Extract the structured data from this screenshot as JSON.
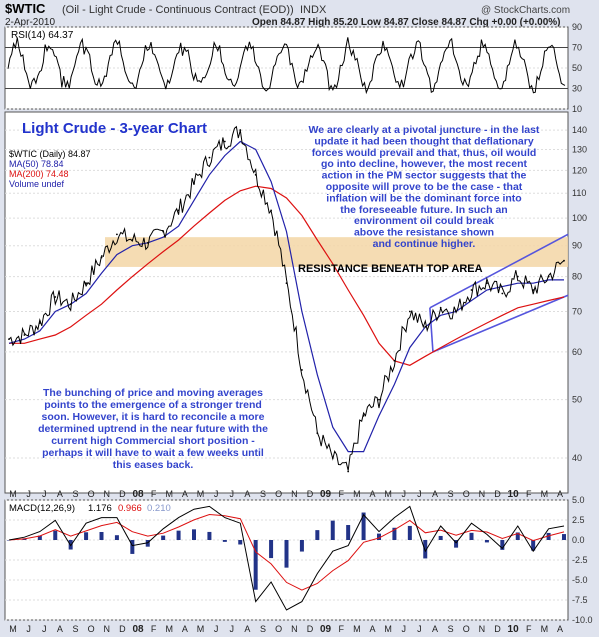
{
  "header": {
    "symbol": "$WTIC",
    "name": "(Oil - Light Crude - Continuous Contract (EOD))",
    "exchange": "INDX",
    "date": "2-Apr-2010",
    "ohlc": "Open 84.87  High 85.20  Low 84.87  Close 84.87  Chg +0.00 (+0.00%)",
    "watermark": "@ StockCharts.com"
  },
  "rsi": {
    "label": "RSI(14) 64.37",
    "ticks": [
      90,
      70,
      50,
      30,
      10
    ],
    "overbought": 70,
    "oversold": 30
  },
  "main": {
    "title": "Light Crude - 3-year Chart",
    "legend": {
      "price": "$WTIC (Daily) 84.87",
      "ma50": "MA(50) 78.84",
      "ma200": "MA(200) 74.48",
      "volume": "Volume undef"
    },
    "ticks": [
      140,
      130,
      120,
      110,
      100,
      90,
      80,
      70,
      60,
      50,
      40
    ],
    "resistance_label": "RESISTANCE BENEATH TOP AREA",
    "note_top": [
      "We are clearly at a pivotal juncture - in the last",
      "update it had been thought that deflationary",
      "forces would prevail and that, thus, oil would",
      "go into decline, however, the most recent",
      "action in the PM sector suggests that the",
      "opposite will prove to be the case - that",
      "inflation will be the dominant force into",
      "the foreseeable future. In such an",
      "environment oil could break",
      "above the resistance shown",
      "and continue higher."
    ],
    "note_bottom": [
      "The bunching of price and moving averages",
      "points to the emergence of a stronger trend",
      "soon. However, it is hard to reconcile a more",
      "determined uptrend in the near future with the",
      "current high Commercial short position -",
      "perhaps it will have to wait a few weeks until",
      "this eases back."
    ]
  },
  "macd": {
    "label": "MACD(12,26,9)",
    "v1": "1.176",
    "v2": "0.966",
    "v3": "0.210",
    "ticks": [
      "5.0",
      "2.5",
      "0.0",
      "-2.5",
      "-5.0",
      "-7.5",
      "-10.0"
    ]
  },
  "x_axis": [
    "M",
    "J",
    "J",
    "A",
    "S",
    "O",
    "N",
    "D",
    "08",
    "F",
    "M",
    "A",
    "M",
    "J",
    "J",
    "A",
    "S",
    "O",
    "N",
    "D",
    "09",
    "F",
    "M",
    "A",
    "M",
    "J",
    "J",
    "A",
    "S",
    "O",
    "N",
    "D",
    "10",
    "F",
    "M",
    "A"
  ],
  "colors": {
    "price": "#000000",
    "ma50": "#2222aa",
    "ma200": "#dd1111",
    "resistance": "#f3d6a6",
    "channel": "#5555dd",
    "note_text": "#3344cc",
    "rsi_line": "#000000",
    "macd_line": "#000000",
    "signal_line": "#dd1111",
    "histogram": "#223388",
    "panel_bg": "#ffffff",
    "page_bg": "#dfe3ee"
  },
  "chart_data": {
    "type": "line",
    "title": "Light Crude - 3-year Chart",
    "x": [
      "2007-04",
      "2007-05",
      "2007-06",
      "2007-07",
      "2007-08",
      "2007-09",
      "2007-10",
      "2007-11",
      "2007-12",
      "2008-01",
      "2008-02",
      "2008-03",
      "2008-04",
      "2008-05",
      "2008-06",
      "2008-07",
      "2008-08",
      "2008-09",
      "2008-10",
      "2008-11",
      "2008-12",
      "2009-01",
      "2009-02",
      "2009-03",
      "2009-04",
      "2009-05",
      "2009-06",
      "2009-07",
      "2009-08",
      "2009-09",
      "2009-10",
      "2009-11",
      "2009-12",
      "2010-01",
      "2010-02",
      "2010-03",
      "2010-04"
    ],
    "series": [
      {
        "name": "$WTIC (Daily) 84.87",
        "values": [
          63,
          64,
          67,
          74,
          72,
          78,
          86,
          94,
          92,
          91,
          95,
          103,
          114,
          126,
          134,
          140,
          118,
          103,
          78,
          56,
          44,
          40,
          38,
          47,
          50,
          58,
          70,
          66,
          71,
          70,
          76,
          78,
          75,
          80,
          76,
          80,
          85
        ]
      },
      {
        "name": "MA(50) 78.84",
        "values": [
          62,
          63,
          65,
          70,
          72,
          75,
          81,
          87,
          90,
          91,
          93,
          97,
          107,
          118,
          127,
          134,
          130,
          115,
          95,
          70,
          55,
          45,
          41,
          41,
          47,
          53,
          61,
          66,
          69,
          70,
          73,
          76,
          77,
          78,
          78,
          79,
          79
        ]
      },
      {
        "name": "MA(200) 74.48",
        "values": [
          62,
          62,
          63,
          64,
          66,
          69,
          72,
          76,
          80,
          84,
          88,
          92,
          97,
          102,
          107,
          111,
          113,
          112,
          108,
          101,
          92,
          84,
          76,
          69,
          62,
          58,
          57,
          59,
          61,
          63,
          65,
          67,
          69,
          71,
          72,
          73,
          74
        ]
      }
    ],
    "ylim": [
      35,
      150
    ],
    "y_scale": "log",
    "grid": true,
    "rsi_ylim": [
      10,
      90
    ],
    "macd_ylim": [
      -10.0,
      5.0
    ]
  }
}
